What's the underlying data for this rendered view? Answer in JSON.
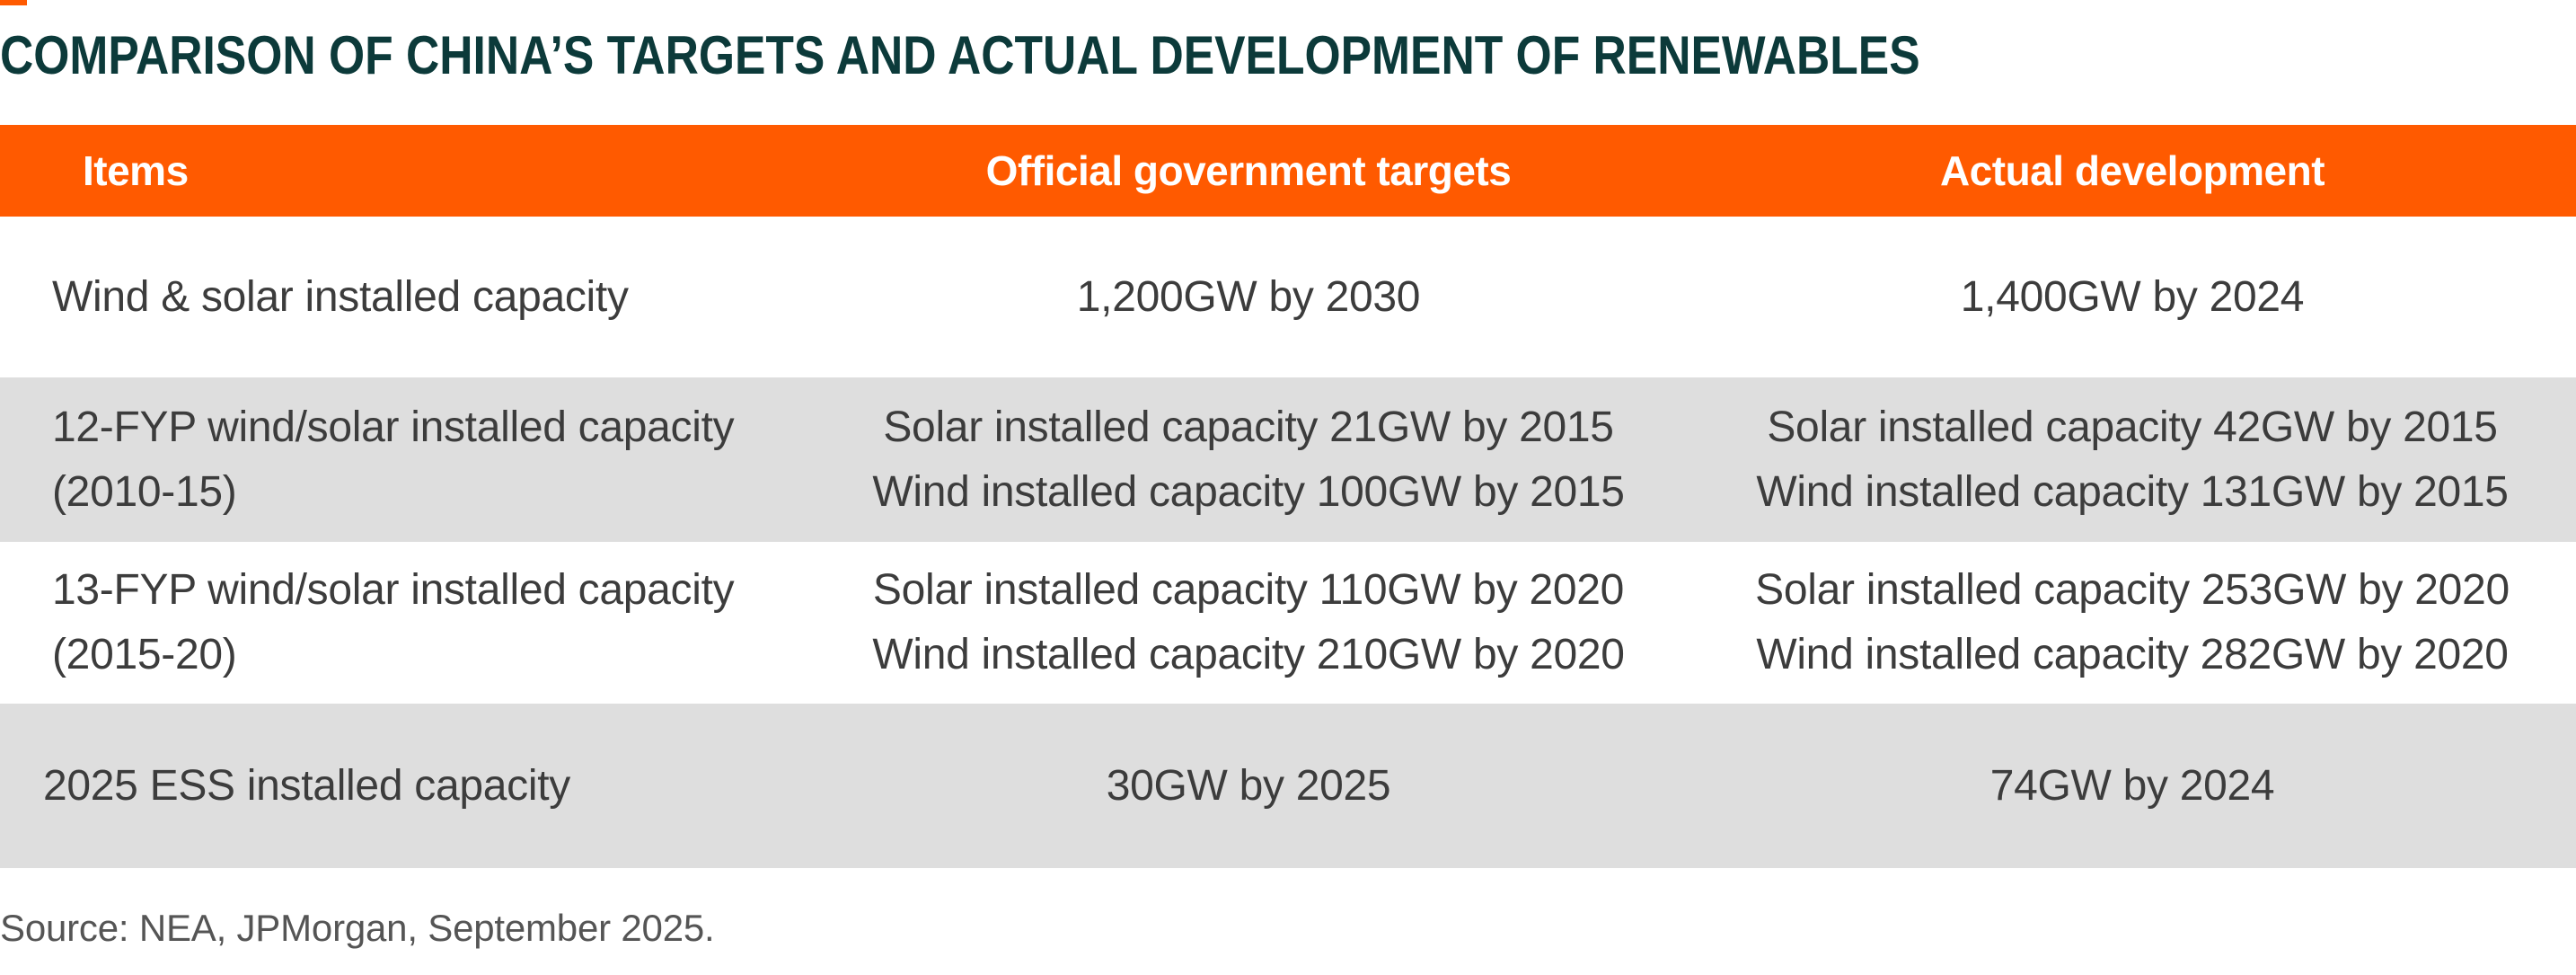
{
  "title": "COMPARISON OF CHINA’S TARGETS AND ACTUAL DEVELOPMENT OF RENEWABLES",
  "colors": {
    "accent": "#ff5a00",
    "title": "#0c3a3a",
    "band": "#dedede",
    "text": "#3c3c3c"
  },
  "table": {
    "headers": [
      "Items",
      "Official government targets",
      "Actual development"
    ],
    "rows": [
      {
        "item": [
          "Wind & solar installed capacity"
        ],
        "target": [
          "1,200GW by 2030"
        ],
        "actual": [
          "1,400GW by 2024"
        ]
      },
      {
        "item": [
          "12-FYP wind/solar installed capacity",
          "(2010-15)"
        ],
        "target": [
          "Solar installed capacity 21GW by 2015",
          "Wind installed capacity 100GW by 2015"
        ],
        "actual": [
          "Solar installed capacity 42GW by 2015",
          "Wind installed capacity 131GW by 2015"
        ]
      },
      {
        "item": [
          "13-FYP wind/solar installed capacity",
          "(2015-20)"
        ],
        "target": [
          "Solar installed capacity 110GW by 2020",
          "Wind installed capacity 210GW by 2020"
        ],
        "actual": [
          "Solar installed capacity 253GW by 2020",
          "Wind installed capacity 282GW by 2020"
        ]
      },
      {
        "item": [
          "2025 ESS installed capacity"
        ],
        "target": [
          "30GW by 2025"
        ],
        "actual": [
          "74GW by 2024"
        ]
      }
    ]
  },
  "source": "Source: NEA, JPMorgan, September 2025."
}
